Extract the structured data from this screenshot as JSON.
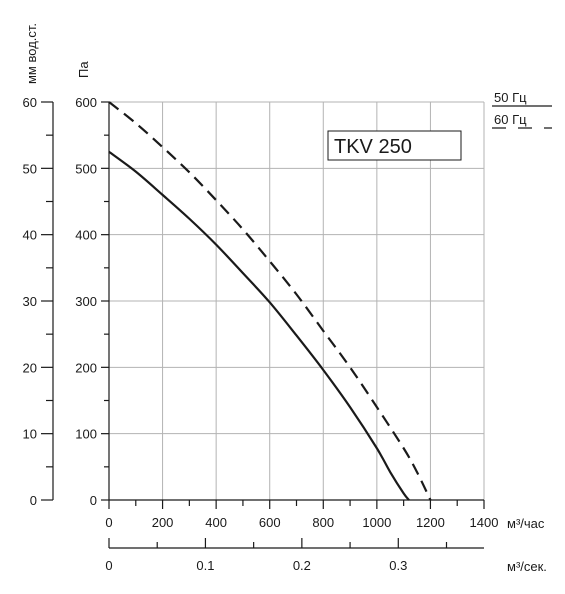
{
  "chart_data": {
    "type": "line",
    "title": "TKV 250",
    "x_unit": "м³/час",
    "x_ticks": [
      0,
      200,
      400,
      600,
      800,
      1000,
      1200,
      1400
    ],
    "xlim": [
      0,
      1400
    ],
    "x2_unit": "м³/сек.",
    "x2_ticks": [
      0,
      0.1,
      0.2,
      0.3
    ],
    "x2_tick_labels": [
      "0",
      "0.1",
      "0.2",
      "0.3"
    ],
    "y_unit": "Па",
    "y_ticks": [
      0,
      100,
      200,
      300,
      400,
      500,
      600
    ],
    "ylim": [
      0,
      600
    ],
    "y2_unit": "мм вод.ст.",
    "y2_ticks": [
      0,
      10,
      20,
      30,
      40,
      50,
      60
    ],
    "grid": true,
    "legend_position": "top-right",
    "series": [
      {
        "name": "50 Гц",
        "line_style": "solid",
        "color": "#1a1a1a",
        "x": [
          0,
          100,
          200,
          300,
          400,
          500,
          600,
          700,
          800,
          900,
          1000,
          1050,
          1100,
          1120
        ],
        "y": [
          525,
          495,
          460,
          424,
          385,
          342,
          298,
          248,
          196,
          140,
          78,
          42,
          10,
          0
        ]
      },
      {
        "name": "60 Гц",
        "line_style": "dashed",
        "color": "#1a1a1a",
        "x": [
          0,
          100,
          200,
          300,
          400,
          500,
          600,
          700,
          800,
          900,
          1000,
          1100,
          1150,
          1200
        ],
        "y": [
          600,
          568,
          532,
          494,
          452,
          408,
          360,
          310,
          255,
          200,
          140,
          78,
          42,
          0
        ]
      }
    ]
  }
}
